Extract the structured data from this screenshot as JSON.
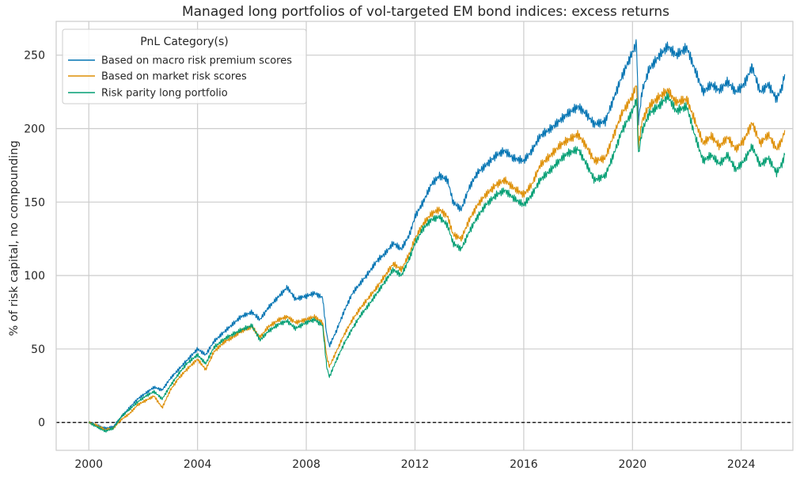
{
  "chart_data": {
    "type": "line",
    "title": "Managed long portfolios of vol-targeted EM bond indices: excess returns",
    "xlabel": "",
    "ylabel": "% of risk capital, no compounding",
    "xlim": [
      1998.8,
      2025.9
    ],
    "ylim": [
      -19,
      273
    ],
    "x_ticks": [
      2000,
      2004,
      2008,
      2012,
      2016,
      2020,
      2024
    ],
    "x_tick_labels": [
      "2000",
      "2004",
      "2008",
      "2012",
      "2016",
      "2020",
      "2024"
    ],
    "y_ticks": [
      0,
      50,
      100,
      150,
      200,
      250
    ],
    "y_tick_labels": [
      "0",
      "50",
      "100",
      "150",
      "200",
      "250"
    ],
    "zero_line": 0,
    "grid": true,
    "legend": {
      "title": "PnL Category(s)",
      "position": "top-left"
    },
    "series": [
      {
        "name": "Based on macro risk premium scores",
        "color": "#0173b2",
        "points": [
          [
            2000.0,
            0
          ],
          [
            2000.3,
            -2
          ],
          [
            2000.6,
            -4
          ],
          [
            2000.9,
            -3
          ],
          [
            2001.2,
            4
          ],
          [
            2001.5,
            10
          ],
          [
            2001.8,
            16
          ],
          [
            2002.1,
            20
          ],
          [
            2002.4,
            24
          ],
          [
            2002.7,
            22
          ],
          [
            2003.0,
            30
          ],
          [
            2003.3,
            36
          ],
          [
            2003.6,
            42
          ],
          [
            2004.0,
            50
          ],
          [
            2004.3,
            46
          ],
          [
            2004.6,
            55
          ],
          [
            2005.0,
            62
          ],
          [
            2005.3,
            67
          ],
          [
            2005.6,
            72
          ],
          [
            2006.0,
            75
          ],
          [
            2006.3,
            70
          ],
          [
            2006.6,
            78
          ],
          [
            2007.0,
            86
          ],
          [
            2007.3,
            92
          ],
          [
            2007.6,
            84
          ],
          [
            2008.0,
            86
          ],
          [
            2008.3,
            88
          ],
          [
            2008.6,
            85
          ],
          [
            2008.75,
            60
          ],
          [
            2008.85,
            52
          ],
          [
            2009.1,
            62
          ],
          [
            2009.4,
            76
          ],
          [
            2009.7,
            88
          ],
          [
            2010.0,
            95
          ],
          [
            2010.3,
            102
          ],
          [
            2010.6,
            110
          ],
          [
            2010.9,
            115
          ],
          [
            2011.2,
            122
          ],
          [
            2011.5,
            118
          ],
          [
            2011.8,
            128
          ],
          [
            2012.0,
            140
          ],
          [
            2012.3,
            150
          ],
          [
            2012.6,
            162
          ],
          [
            2012.9,
            168
          ],
          [
            2013.2,
            165
          ],
          [
            2013.4,
            150
          ],
          [
            2013.7,
            145
          ],
          [
            2014.0,
            160
          ],
          [
            2014.3,
            170
          ],
          [
            2014.6,
            175
          ],
          [
            2015.0,
            182
          ],
          [
            2015.3,
            185
          ],
          [
            2015.6,
            180
          ],
          [
            2016.0,
            178
          ],
          [
            2016.3,
            185
          ],
          [
            2016.6,
            195
          ],
          [
            2017.0,
            200
          ],
          [
            2017.3,
            205
          ],
          [
            2017.6,
            210
          ],
          [
            2018.0,
            215
          ],
          [
            2018.3,
            210
          ],
          [
            2018.6,
            203
          ],
          [
            2019.0,
            205
          ],
          [
            2019.3,
            220
          ],
          [
            2019.6,
            235
          ],
          [
            2020.0,
            252
          ],
          [
            2020.15,
            258
          ],
          [
            2020.22,
            205
          ],
          [
            2020.35,
            225
          ],
          [
            2020.6,
            240
          ],
          [
            2021.0,
            250
          ],
          [
            2021.3,
            256
          ],
          [
            2021.6,
            250
          ],
          [
            2022.0,
            255
          ],
          [
            2022.3,
            240
          ],
          [
            2022.6,
            225
          ],
          [
            2022.9,
            230
          ],
          [
            2023.2,
            226
          ],
          [
            2023.5,
            232
          ],
          [
            2023.8,
            225
          ],
          [
            2024.1,
            230
          ],
          [
            2024.4,
            242
          ],
          [
            2024.7,
            225
          ],
          [
            2025.0,
            230
          ],
          [
            2025.3,
            220
          ],
          [
            2025.5,
            228
          ],
          [
            2025.6,
            237
          ]
        ]
      },
      {
        "name": "Based on market risk scores",
        "color": "#de8f05",
        "points": [
          [
            2000.0,
            0
          ],
          [
            2000.3,
            -2
          ],
          [
            2000.6,
            -5
          ],
          [
            2000.9,
            -4
          ],
          [
            2001.2,
            2
          ],
          [
            2001.5,
            6
          ],
          [
            2001.8,
            12
          ],
          [
            2002.1,
            15
          ],
          [
            2002.4,
            18
          ],
          [
            2002.7,
            10
          ],
          [
            2003.0,
            22
          ],
          [
            2003.3,
            30
          ],
          [
            2003.6,
            36
          ],
          [
            2004.0,
            43
          ],
          [
            2004.3,
            36
          ],
          [
            2004.6,
            48
          ],
          [
            2005.0,
            55
          ],
          [
            2005.3,
            58
          ],
          [
            2005.6,
            62
          ],
          [
            2006.0,
            65
          ],
          [
            2006.3,
            58
          ],
          [
            2006.6,
            65
          ],
          [
            2007.0,
            70
          ],
          [
            2007.3,
            72
          ],
          [
            2007.6,
            68
          ],
          [
            2008.0,
            70
          ],
          [
            2008.3,
            72
          ],
          [
            2008.6,
            68
          ],
          [
            2008.75,
            45
          ],
          [
            2008.85,
            38
          ],
          [
            2009.1,
            48
          ],
          [
            2009.4,
            60
          ],
          [
            2009.7,
            70
          ],
          [
            2010.0,
            78
          ],
          [
            2010.3,
            85
          ],
          [
            2010.6,
            92
          ],
          [
            2010.9,
            100
          ],
          [
            2011.2,
            108
          ],
          [
            2011.5,
            104
          ],
          [
            2011.8,
            115
          ],
          [
            2012.0,
            125
          ],
          [
            2012.3,
            135
          ],
          [
            2012.6,
            142
          ],
          [
            2012.9,
            145
          ],
          [
            2013.2,
            140
          ],
          [
            2013.4,
            128
          ],
          [
            2013.7,
            125
          ],
          [
            2014.0,
            138
          ],
          [
            2014.3,
            148
          ],
          [
            2014.6,
            155
          ],
          [
            2015.0,
            162
          ],
          [
            2015.3,
            165
          ],
          [
            2015.6,
            160
          ],
          [
            2016.0,
            155
          ],
          [
            2016.3,
            162
          ],
          [
            2016.6,
            175
          ],
          [
            2017.0,
            182
          ],
          [
            2017.3,
            188
          ],
          [
            2017.6,
            192
          ],
          [
            2018.0,
            196
          ],
          [
            2018.3,
            188
          ],
          [
            2018.6,
            178
          ],
          [
            2019.0,
            180
          ],
          [
            2019.3,
            195
          ],
          [
            2019.6,
            210
          ],
          [
            2020.0,
            222
          ],
          [
            2020.15,
            230
          ],
          [
            2020.22,
            188
          ],
          [
            2020.35,
            205
          ],
          [
            2020.6,
            215
          ],
          [
            2021.0,
            222
          ],
          [
            2021.3,
            226
          ],
          [
            2021.6,
            218
          ],
          [
            2022.0,
            220
          ],
          [
            2022.3,
            205
          ],
          [
            2022.6,
            190
          ],
          [
            2022.9,
            195
          ],
          [
            2023.2,
            188
          ],
          [
            2023.5,
            194
          ],
          [
            2023.8,
            186
          ],
          [
            2024.1,
            192
          ],
          [
            2024.4,
            204
          ],
          [
            2024.7,
            190
          ],
          [
            2025.0,
            196
          ],
          [
            2025.3,
            186
          ],
          [
            2025.5,
            192
          ],
          [
            2025.6,
            199
          ]
        ]
      },
      {
        "name": "Risk parity long portfolio",
        "color": "#029e73",
        "points": [
          [
            2000.0,
            0
          ],
          [
            2000.3,
            -3
          ],
          [
            2000.6,
            -6
          ],
          [
            2000.9,
            -4
          ],
          [
            2001.2,
            4
          ],
          [
            2001.5,
            9
          ],
          [
            2001.8,
            14
          ],
          [
            2002.1,
            18
          ],
          [
            2002.4,
            21
          ],
          [
            2002.7,
            16
          ],
          [
            2003.0,
            25
          ],
          [
            2003.3,
            33
          ],
          [
            2003.6,
            40
          ],
          [
            2004.0,
            46
          ],
          [
            2004.3,
            40
          ],
          [
            2004.6,
            51
          ],
          [
            2005.0,
            57
          ],
          [
            2005.3,
            60
          ],
          [
            2005.6,
            63
          ],
          [
            2006.0,
            66
          ],
          [
            2006.3,
            56
          ],
          [
            2006.6,
            62
          ],
          [
            2007.0,
            67
          ],
          [
            2007.3,
            69
          ],
          [
            2007.6,
            64
          ],
          [
            2008.0,
            68
          ],
          [
            2008.3,
            70
          ],
          [
            2008.6,
            66
          ],
          [
            2008.75,
            38
          ],
          [
            2008.85,
            31
          ],
          [
            2009.1,
            42
          ],
          [
            2009.4,
            54
          ],
          [
            2009.7,
            64
          ],
          [
            2010.0,
            73
          ],
          [
            2010.3,
            80
          ],
          [
            2010.6,
            88
          ],
          [
            2010.9,
            96
          ],
          [
            2011.2,
            104
          ],
          [
            2011.5,
            100
          ],
          [
            2011.8,
            112
          ],
          [
            2012.0,
            122
          ],
          [
            2012.3,
            132
          ],
          [
            2012.6,
            138
          ],
          [
            2012.9,
            140
          ],
          [
            2013.2,
            134
          ],
          [
            2013.4,
            122
          ],
          [
            2013.7,
            118
          ],
          [
            2014.0,
            130
          ],
          [
            2014.3,
            140
          ],
          [
            2014.6,
            148
          ],
          [
            2015.0,
            155
          ],
          [
            2015.3,
            158
          ],
          [
            2015.6,
            153
          ],
          [
            2016.0,
            148
          ],
          [
            2016.3,
            155
          ],
          [
            2016.6,
            165
          ],
          [
            2017.0,
            172
          ],
          [
            2017.3,
            178
          ],
          [
            2017.6,
            183
          ],
          [
            2018.0,
            186
          ],
          [
            2018.3,
            176
          ],
          [
            2018.6,
            165
          ],
          [
            2019.0,
            168
          ],
          [
            2019.3,
            182
          ],
          [
            2019.6,
            198
          ],
          [
            2020.0,
            212
          ],
          [
            2020.15,
            220
          ],
          [
            2020.22,
            182
          ],
          [
            2020.35,
            198
          ],
          [
            2020.6,
            210
          ],
          [
            2021.0,
            216
          ],
          [
            2021.3,
            222
          ],
          [
            2021.6,
            212
          ],
          [
            2022.0,
            215
          ],
          [
            2022.3,
            195
          ],
          [
            2022.6,
            178
          ],
          [
            2022.9,
            182
          ],
          [
            2023.2,
            176
          ],
          [
            2023.5,
            182
          ],
          [
            2023.8,
            172
          ],
          [
            2024.1,
            178
          ],
          [
            2024.4,
            188
          ],
          [
            2024.7,
            175
          ],
          [
            2025.0,
            180
          ],
          [
            2025.3,
            170
          ],
          [
            2025.5,
            176
          ],
          [
            2025.6,
            182
          ]
        ]
      }
    ]
  }
}
